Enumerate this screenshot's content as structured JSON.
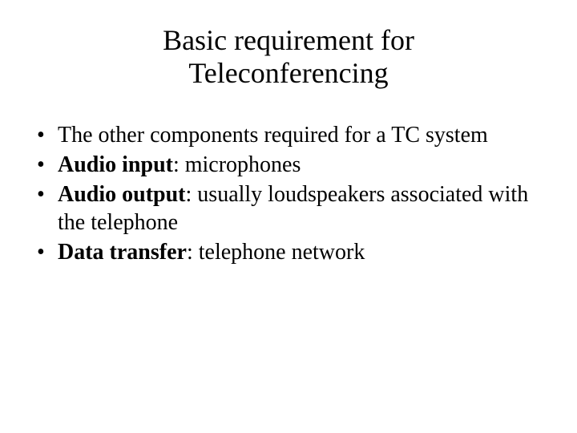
{
  "title_line1": "Basic requirement for",
  "title_line2": "Teleconferencing",
  "bullets": [
    {
      "bold": "",
      "rest": "The other components required for a TC system"
    },
    {
      "bold": "Audio input",
      "rest": ": microphones"
    },
    {
      "bold": "Audio output",
      "rest": ": usually loudspeakers associated with the telephone"
    },
    {
      "bold": "Data transfer",
      "rest": ": telephone network"
    }
  ],
  "colors": {
    "background": "#ffffff",
    "text": "#000000"
  },
  "typography": {
    "title_fontsize": 36,
    "bullet_fontsize": 28,
    "font_family": "Times New Roman"
  }
}
